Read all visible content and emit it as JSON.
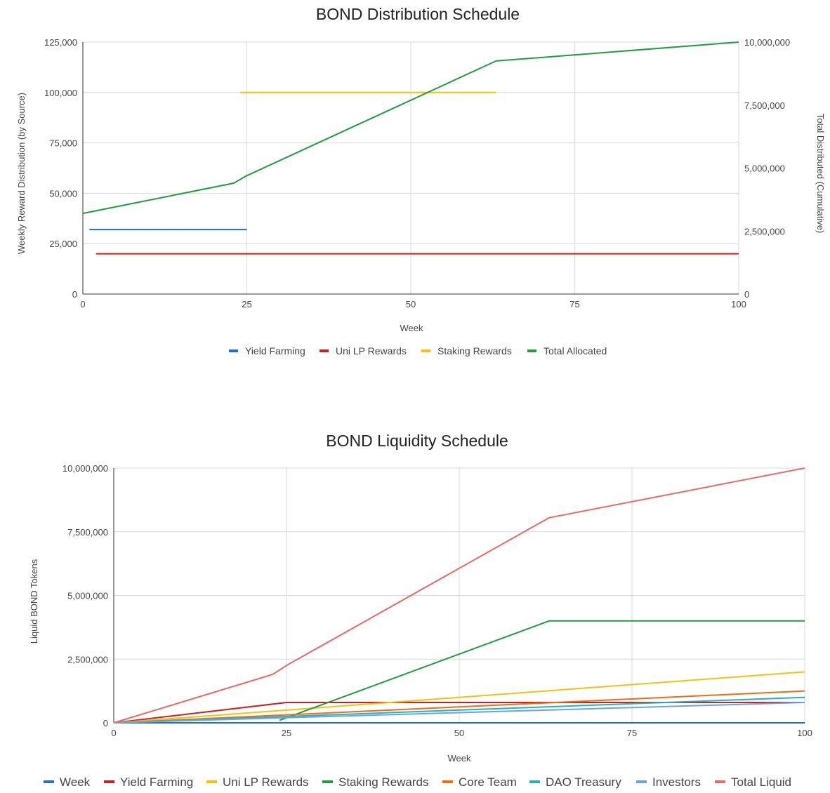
{
  "chart_data": [
    {
      "type": "line",
      "title": "BOND Distribution Schedule",
      "xlabel": "Week",
      "ylabel": "Weekly Reward Distribution (by Source)",
      "ylabel_right": "Total Distributed (Cumulative)",
      "xlim": [
        0,
        100
      ],
      "ylim": [
        0,
        125000
      ],
      "ylim_right": [
        0,
        10000000
      ],
      "x_ticks": [
        "0",
        "25",
        "50",
        "75",
        "100"
      ],
      "y_ticks": [
        "0",
        "25,000",
        "50,000",
        "75,000",
        "100,000",
        "125,000"
      ],
      "y_ticks_right": [
        "0",
        "2,500,000",
        "5,000,000",
        "7,500,000",
        "10,000,000"
      ],
      "grid": true,
      "legend_position": "bottom",
      "series": [
        {
          "name": "Yield Farming",
          "color": "#1e6fd0",
          "axis": "left",
          "points": [
            [
              1,
              32000
            ],
            [
              25,
              32000
            ]
          ]
        },
        {
          "name": "Uni LP Rewards",
          "color": "#cc1f1f",
          "axis": "left",
          "points": [
            [
              2,
              20000
            ],
            [
              100,
              20000
            ]
          ]
        },
        {
          "name": "Staking Rewards",
          "color": "#f4c20d",
          "axis": "left",
          "points": [
            [
              24,
              100000
            ],
            [
              63,
              100000
            ]
          ]
        },
        {
          "name": "Total Allocated",
          "color": "#1f9e3e",
          "axis": "right",
          "points": [
            [
              0,
              3200000
            ],
            [
              23,
              4400000
            ],
            [
              25,
              4700000
            ],
            [
              63,
              9250000
            ],
            [
              100,
              10000000
            ]
          ]
        }
      ]
    },
    {
      "type": "line",
      "title": "BOND Liquidity Schedule",
      "xlabel": "Week",
      "ylabel": "Liquid BOND Tokens",
      "xlim": [
        0,
        100
      ],
      "ylim": [
        0,
        10000000
      ],
      "x_ticks": [
        "0",
        "25",
        "50",
        "75",
        "100"
      ],
      "y_ticks": [
        "0",
        "2,500,000",
        "5,000,000",
        "7,500,000",
        "10,000,000"
      ],
      "grid": true,
      "legend_position": "bottom",
      "series": [
        {
          "name": "Week",
          "color": "#1e6fd0",
          "points": [
            [
              0,
              0
            ],
            [
              100,
              0
            ]
          ]
        },
        {
          "name": "Yield Farming",
          "color": "#cc1f1f",
          "points": [
            [
              0,
              0
            ],
            [
              25,
              800000
            ],
            [
              100,
              800000
            ]
          ]
        },
        {
          "name": "Uni LP Rewards",
          "color": "#f4c20d",
          "points": [
            [
              0,
              0
            ],
            [
              100,
              2000000
            ]
          ]
        },
        {
          "name": "Staking Rewards",
          "color": "#1f9e3e",
          "points": [
            [
              24,
              100000
            ],
            [
              63,
              4000000
            ],
            [
              100,
              4000000
            ]
          ]
        },
        {
          "name": "Core Team",
          "color": "#f26b11",
          "points": [
            [
              0,
              0
            ],
            [
              100,
              1250000
            ]
          ]
        },
        {
          "name": "DAO Treasury",
          "color": "#20b3c7",
          "points": [
            [
              0,
              0
            ],
            [
              100,
              1000000
            ]
          ]
        },
        {
          "name": "Investors",
          "color": "#6aa5dd",
          "points": [
            [
              0,
              0
            ],
            [
              100,
              800000
            ]
          ]
        },
        {
          "name": "Total Liquid",
          "color": "#e86a65",
          "points": [
            [
              0,
              0
            ],
            [
              23,
              1900000
            ],
            [
              25,
              2250000
            ],
            [
              63,
              8050000
            ],
            [
              100,
              10000000
            ]
          ]
        }
      ]
    }
  ]
}
